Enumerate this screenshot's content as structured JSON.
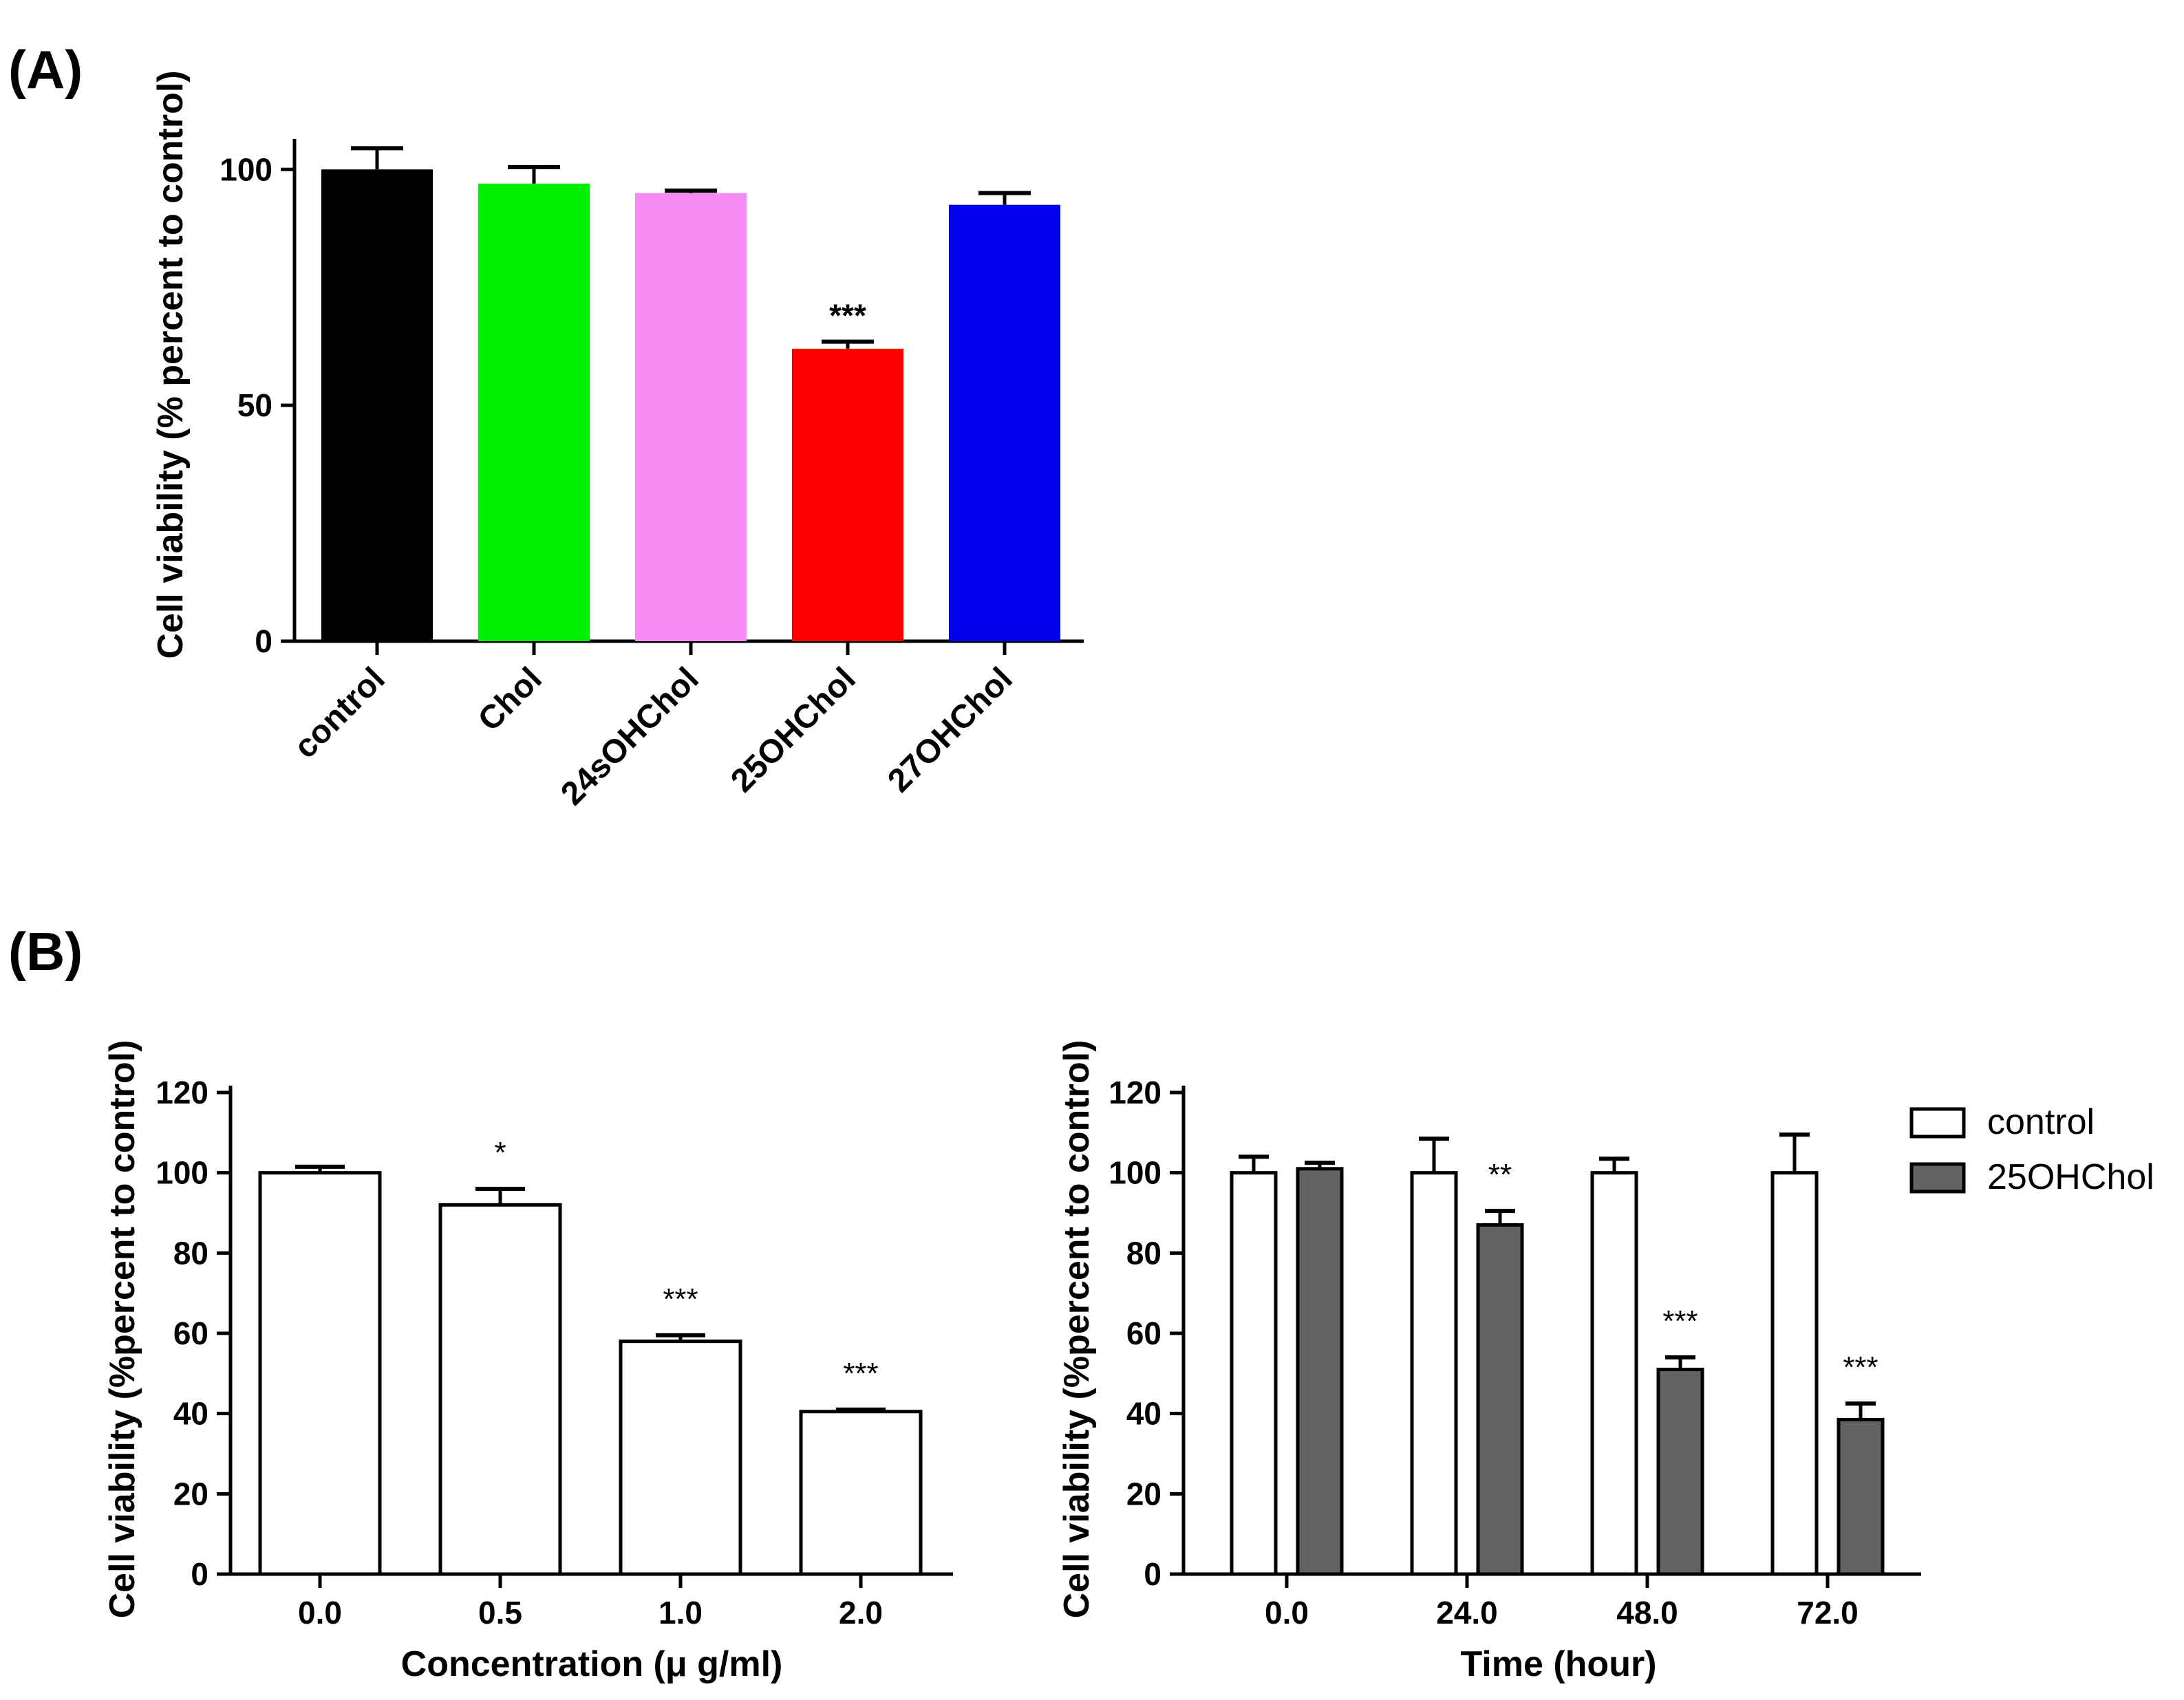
{
  "chart_data": [
    {
      "panel": "(A)",
      "type": "bar",
      "categories": [
        "control",
        "Chol",
        "24sOHChol",
        "25OHChol",
        "27OHChol"
      ],
      "values": [
        100,
        97,
        95,
        62,
        92.5
      ],
      "errors": [
        4.5,
        3.5,
        0.5,
        1.5,
        2.5
      ],
      "colors": [
        "#000000",
        "#00ee00",
        "#f58cf5",
        "#ff0000",
        "#0000ee"
      ],
      "annotations": [
        "",
        "",
        "",
        "***",
        ""
      ],
      "xlabel": "",
      "ylabel": "Cell viability (% percent to control)",
      "ylim": [
        0,
        105
      ],
      "yticks": [
        "0",
        "50",
        "100"
      ],
      "grid": false
    },
    {
      "panel": "(B)",
      "type": "bar",
      "categories": [
        "0.0",
        "0.5",
        "1.0",
        "2.0"
      ],
      "values": [
        100,
        92,
        58,
        40.5
      ],
      "errors": [
        1.5,
        4,
        1.5,
        0.5
      ],
      "colors": [
        "#ffffff"
      ],
      "annotations": [
        "",
        "*",
        "***",
        "***"
      ],
      "xlabel": "Concentration (μ g/ml)",
      "ylabel": "Cell viability (%percent to control)",
      "ylim": [
        0,
        120
      ],
      "yticks": [
        "0",
        "20",
        "40",
        "60",
        "80",
        "100",
        "120"
      ],
      "grid": false
    },
    {
      "type": "bar",
      "categories": [
        "0.0",
        "24.0",
        "48.0",
        "72.0"
      ],
      "series": [
        {
          "name": "control",
          "values": [
            100,
            100,
            100,
            100
          ],
          "errors": [
            4,
            8.5,
            3.5,
            9.5
          ],
          "color": "#ffffff",
          "annotations": [
            "",
            "",
            "",
            ""
          ]
        },
        {
          "name": "25OHChol",
          "values": [
            101,
            87,
            51,
            38.5
          ],
          "errors": [
            1.5,
            3.5,
            3,
            4
          ],
          "color": "#636363",
          "annotations": [
            "",
            "**",
            "***",
            "***"
          ]
        }
      ],
      "xlabel": "Time (hour)",
      "ylabel": "Cell viability (%percent to control)",
      "ylim": [
        0,
        120
      ],
      "yticks": [
        "0",
        "20",
        "40",
        "60",
        "80",
        "100",
        "120"
      ],
      "legend": "top-right",
      "grid": false
    }
  ]
}
